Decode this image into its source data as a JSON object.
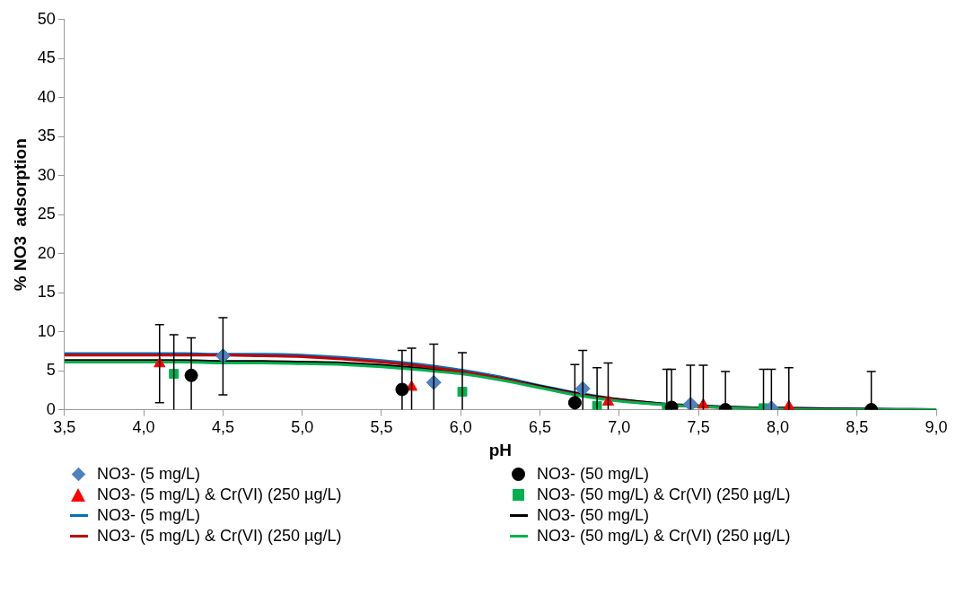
{
  "chart_data": {
    "type": "scatter",
    "xlabel": "pH",
    "ylabel": "% NO3  adsorption",
    "xlim": [
      3.5,
      9.0
    ],
    "xticks": [
      {
        "value": 3.5,
        "label": "3,5"
      },
      {
        "value": 4.0,
        "label": "4,0"
      },
      {
        "value": 4.5,
        "label": "4,5"
      },
      {
        "value": 5.0,
        "label": "5,0"
      },
      {
        "value": 5.5,
        "label": "5,5"
      },
      {
        "value": 6.0,
        "label": "6,0"
      },
      {
        "value": 6.5,
        "label": "6,5"
      },
      {
        "value": 7.0,
        "label": "7,0"
      },
      {
        "value": 7.5,
        "label": "7,5"
      },
      {
        "value": 8.0,
        "label": "8,0"
      },
      {
        "value": 8.5,
        "label": "8,5"
      },
      {
        "value": 9.0,
        "label": "9,0"
      }
    ],
    "ylim": [
      0,
      50
    ],
    "yticks": [
      0,
      5,
      10,
      15,
      20,
      25,
      30,
      35,
      40,
      45,
      50
    ],
    "grid": false,
    "legend": "bottom",
    "series": [
      {
        "name": "NO3- (5 mg/L)",
        "type": "scatter",
        "marker": "diamond",
        "color": "#4f81bd",
        "x": [
          4.5,
          5.83,
          6.77,
          7.45,
          7.96
        ],
        "values": [
          6.9,
          3.5,
          2.7,
          0.7,
          0.2
        ],
        "errors": [
          [
            1.9,
            11.8
          ],
          [
            0,
            8.4
          ],
          [
            0,
            7.6
          ],
          [
            0,
            5.7
          ],
          [
            0,
            5.2
          ]
        ]
      },
      {
        "name": "NO3- (50 mg/L)",
        "type": "scatter",
        "marker": "circle",
        "color": "#000000",
        "x": [
          4.3,
          5.63,
          6.72,
          7.33,
          7.67,
          8.59
        ],
        "values": [
          4.4,
          2.6,
          0.9,
          0.3,
          0,
          0
        ],
        "errors": [
          [
            0,
            9.2
          ],
          [
            0,
            7.6
          ],
          [
            0,
            5.8
          ],
          [
            0,
            5.2
          ],
          [
            0,
            4.9
          ],
          [
            0,
            4.9
          ]
        ]
      },
      {
        "name": "NO3- (5 mg/L) & Cr(VI) (250 µg/L)",
        "type": "scatter",
        "marker": "triangle",
        "color": "#ff0000",
        "x": [
          4.1,
          5.69,
          6.93,
          7.53,
          8.07
        ],
        "values": [
          5.9,
          2.9,
          1.0,
          0.6,
          0.4
        ],
        "errors": [
          [
            0.9,
            10.9
          ],
          [
            0,
            7.9
          ],
          [
            0,
            6.0
          ],
          [
            0,
            5.7
          ],
          [
            0,
            5.4
          ]
        ]
      },
      {
        "name": "NO3- (50 mg/L) & Cr(VI) (250 µg/L)",
        "type": "scatter",
        "marker": "square",
        "color": "#00b050",
        "x": [
          4.19,
          6.01,
          6.86,
          7.3,
          7.91
        ],
        "values": [
          4.6,
          2.3,
          0.5,
          0.2,
          0.2
        ],
        "errors": [
          [
            0,
            9.6
          ],
          [
            0,
            7.3
          ],
          [
            0,
            5.4
          ],
          [
            0,
            5.2
          ],
          [
            0,
            5.2
          ]
        ]
      },
      {
        "name": "NO3- (5 mg/L)",
        "type": "line",
        "marker": "none",
        "color": "#0070c0",
        "x": [
          3.5,
          3.75,
          4.0,
          4.25,
          4.5,
          4.75,
          5.0,
          5.25,
          5.5,
          5.75,
          6.0,
          6.25,
          6.5,
          6.75,
          7.0,
          7.25,
          7.5,
          7.75,
          8.0,
          8.5,
          9.0
        ],
        "values": [
          7.2,
          7.2,
          7.2,
          7.2,
          7.1,
          7.1,
          7.0,
          6.7,
          6.3,
          5.8,
          5.1,
          4.2,
          3.1,
          2.1,
          1.3,
          0.8,
          0.5,
          0.3,
          0.2,
          0.1,
          0.0
        ]
      },
      {
        "name": "NO3- (50 mg/L)",
        "type": "line",
        "marker": "none",
        "color": "#000000",
        "x": [
          3.5,
          3.75,
          4.0,
          4.25,
          4.5,
          4.75,
          5.0,
          5.25,
          5.5,
          5.75,
          6.0,
          6.25,
          6.5,
          6.75,
          7.0,
          7.25,
          7.5,
          7.75,
          8.0,
          8.5,
          9.0
        ],
        "values": [
          6.3,
          6.3,
          6.3,
          6.3,
          6.2,
          6.2,
          6.1,
          6.0,
          5.7,
          5.3,
          4.8,
          4.0,
          3.0,
          2.0,
          1.3,
          0.8,
          0.5,
          0.3,
          0.2,
          0.1,
          0.0
        ]
      },
      {
        "name": "NO3- (5 mg/L) & Cr(VI) (250 µg/L)",
        "type": "line",
        "marker": "none",
        "color": "#c00000",
        "x": [
          3.5,
          3.75,
          4.0,
          4.25,
          4.5,
          4.75,
          5.0,
          5.25,
          5.5,
          5.75,
          6.0,
          6.25,
          6.5,
          6.75,
          7.0,
          7.25,
          7.5,
          7.75,
          8.0,
          8.5,
          9.0
        ],
        "values": [
          7.0,
          7.0,
          7.0,
          7.0,
          7.0,
          6.9,
          6.8,
          6.5,
          6.1,
          5.6,
          4.9,
          4.0,
          2.9,
          1.9,
          1.2,
          0.7,
          0.4,
          0.2,
          0.1,
          0.0,
          0.0
        ]
      },
      {
        "name": "NO3- (50 mg/L) & Cr(VI) (250 µg/L)",
        "type": "line",
        "marker": "none",
        "color": "#00b050",
        "x": [
          3.5,
          3.75,
          4.0,
          4.25,
          4.5,
          4.75,
          5.0,
          5.25,
          5.5,
          5.75,
          6.0,
          6.25,
          6.5,
          6.75,
          7.0,
          7.25,
          7.5,
          7.75,
          8.0,
          8.5,
          9.0
        ],
        "values": [
          6.1,
          6.1,
          6.1,
          6.1,
          6.0,
          6.0,
          5.9,
          5.8,
          5.5,
          5.1,
          4.6,
          3.8,
          2.8,
          1.8,
          1.1,
          0.7,
          0.4,
          0.2,
          0.1,
          0.0,
          0.0
        ]
      }
    ]
  }
}
